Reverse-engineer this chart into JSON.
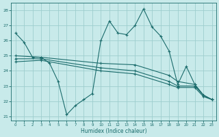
{
  "xlabel": "Humidex (Indice chaleur)",
  "bg_color": "#c8eaea",
  "grid_color": "#9ecece",
  "line_color": "#1a6b6b",
  "series1": {
    "x": [
      0,
      1,
      2,
      3,
      4,
      5,
      6,
      7,
      8,
      9,
      10,
      11,
      12,
      13,
      14,
      15,
      16,
      17,
      18,
      19,
      20,
      21,
      22,
      23
    ],
    "y": [
      26.5,
      25.9,
      24.9,
      24.9,
      24.5,
      23.3,
      21.1,
      21.7,
      22.1,
      22.5,
      26.0,
      27.3,
      26.5,
      26.4,
      27.0,
      28.1,
      26.9,
      26.3,
      25.3,
      23.1,
      24.3,
      23.1,
      22.4,
      22.1
    ]
  },
  "series2": {
    "x": [
      0,
      3,
      10,
      14,
      18,
      19,
      21,
      22,
      23
    ],
    "y": [
      25.0,
      24.9,
      24.5,
      24.4,
      23.7,
      23.3,
      23.1,
      22.4,
      22.1
    ]
  },
  "series3": {
    "x": [
      0,
      3,
      10,
      14,
      18,
      19,
      21,
      22,
      23
    ],
    "y": [
      24.8,
      24.8,
      24.2,
      24.0,
      23.3,
      23.0,
      23.0,
      22.4,
      22.1
    ]
  },
  "series4": {
    "x": [
      0,
      3,
      10,
      14,
      18,
      19,
      21,
      22,
      23
    ],
    "y": [
      24.6,
      24.7,
      24.0,
      23.8,
      23.1,
      22.9,
      22.9,
      22.3,
      22.1
    ]
  },
  "xlim": [
    -0.5,
    23.5
  ],
  "ylim": [
    20.7,
    28.5
  ],
  "yticks": [
    21,
    22,
    23,
    24,
    25,
    26,
    27,
    28
  ],
  "xticks": [
    0,
    1,
    2,
    3,
    4,
    5,
    6,
    7,
    8,
    9,
    10,
    11,
    12,
    13,
    14,
    15,
    16,
    17,
    18,
    19,
    20,
    21,
    22,
    23
  ]
}
